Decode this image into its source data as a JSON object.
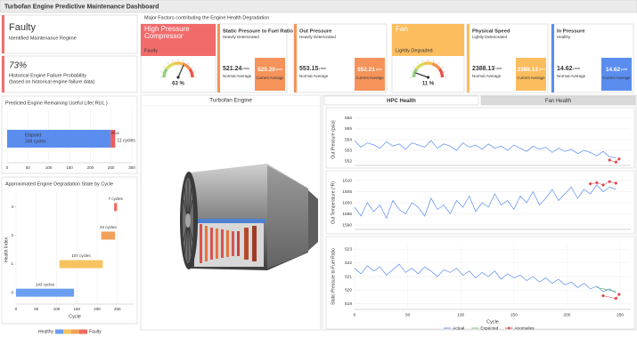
{
  "header": {
    "title": "Turbofan Engine Predictive Maintenance Dashboard"
  },
  "regime": {
    "status": "Faulty",
    "caption": "Identified Maintenance Regime"
  },
  "failure": {
    "probability": "73%",
    "caption": "Historical Engine Failure Probability",
    "note": "(based on historical engine failure data)"
  },
  "factors": {
    "title": "Major Factors contributing the Engine Health Degradation",
    "components": [
      {
        "name": "High Pressure Compressor",
        "state": "Faulty",
        "color": "#f26b6b",
        "gauge": {
          "value": 63,
          "label": "63 %",
          "lim": [
            0,
            100
          ]
        }
      },
      {
        "name": "Fan",
        "state": "Lightly Degraded",
        "color": "#fbbd5e",
        "gauge": {
          "value": 11,
          "label": "11 %",
          "lim": [
            0,
            100
          ]
        }
      }
    ],
    "sensors": [
      {
        "name": "Static Pressure to Fuel Ratio",
        "state": "Heavily Deteriorated",
        "color": "#f5935a",
        "normal": "521.24",
        "current": "520.20",
        "unit": "psia",
        "normal_label": "Normal Average",
        "current_label": "Current Average"
      },
      {
        "name": "Out Pressure",
        "state": "Heavily Deteriorated",
        "color": "#f5935a",
        "normal": "553.15",
        "current": "552.21",
        "unit": "psia",
        "normal_label": "Normal Average",
        "current_label": "Current Average"
      },
      {
        "name": "Physical Speed",
        "state": "Lightly Deteriorated",
        "color": "#fbbd5e",
        "normal": "2388.13",
        "current": "2388.13",
        "unit": "rpm",
        "normal_label": "Normal Average",
        "current_label": "Current Average"
      },
      {
        "name": "In Pressure",
        "state": "Healthy",
        "color": "#5b8def",
        "normal": "14.62",
        "current": "14.62",
        "unit": "psia",
        "normal_label": "Normal Average",
        "current_label": "Current Average"
      }
    ]
  },
  "engine_panel": {
    "title": "Turbofan Engine"
  },
  "tabs": [
    {
      "label": "HPC Health",
      "active": true
    },
    {
      "label": "Fan Health",
      "active": false
    }
  ],
  "chart_data": [
    {
      "type": "bar",
      "orientation": "horizontal",
      "stacked": true,
      "title": "Predicted Engine Remaining Useful Life( RUL )",
      "series": [
        {
          "name": "Elapsed",
          "color": "#5b8def",
          "values": [
            249
          ],
          "value_labels": [
            "249 cycles"
          ]
        },
        {
          "name": "RUL",
          "color": "#ef5b5b",
          "values": [
            11
          ],
          "value_labels": [
            "11 cycles"
          ]
        }
      ],
      "xlim": [
        0,
        300
      ],
      "xticks": [
        0,
        50,
        100,
        150,
        200,
        250,
        300
      ],
      "grid": true
    },
    {
      "type": "range-bar",
      "title": "Approximated Engine Degradation State by Cycle",
      "y": [
        0,
        1,
        2,
        3
      ],
      "base": [
        0,
        107,
        210,
        242
      ],
      "values": [
        143,
        107,
        34,
        7
      ],
      "value_labels": [
        "143 cycles",
        "107 cycles",
        "34 cycles",
        "7 cycles"
      ],
      "colors": [
        "#6a9ef0",
        "#f7c35f",
        "#f3a05a",
        "#ec6a5e"
      ],
      "xlim": [
        0,
        290
      ],
      "xticks": [
        0,
        50,
        100,
        150,
        200,
        250
      ],
      "ylim": [
        -0.4,
        3.4
      ],
      "yticks": [
        0,
        1,
        2,
        3
      ],
      "xlabel": "Cycle",
      "ylabel": "Health Index",
      "grid": true,
      "legend": {
        "low": "Healthy",
        "high": "Faulty"
      }
    },
    {
      "type": "line",
      "ylabel": "Out Pressure (psia)",
      "xlim": [
        0,
        260
      ],
      "ylim": [
        551.6,
        556.4
      ],
      "yticks": [
        552,
        553,
        554,
        555,
        556
      ],
      "grid": true,
      "series": [
        {
          "color": "#5b8def",
          "x": [
            0,
            6,
            12,
            18,
            24,
            30,
            36,
            42,
            48,
            54,
            60,
            66,
            72,
            78,
            84,
            90,
            96,
            102,
            108,
            114,
            120,
            126,
            132,
            138,
            144,
            150,
            156,
            162,
            168,
            174,
            180,
            186,
            192,
            198,
            204,
            210,
            216,
            222,
            228,
            234,
            240,
            246
          ],
          "values": [
            553.9,
            553.3,
            553.7,
            553.5,
            553.2,
            553.8,
            553.4,
            553.6,
            553.1,
            553.7,
            553.5,
            553.3,
            553.9,
            553.2,
            553.6,
            553.4,
            553.0,
            553.7,
            553.3,
            553.5,
            553.1,
            553.6,
            553.2,
            553.4,
            553.0,
            553.5,
            553.2,
            552.9,
            553.4,
            553.1,
            553.3,
            552.8,
            553.2,
            552.9,
            553.1,
            552.7,
            553.0,
            552.8,
            552.5,
            552.9,
            552.4,
            552.3
          ]
        },
        {
          "color": "#e0454f",
          "marker": true,
          "x": [
            240,
            246,
            249
          ],
          "values": [
            552.1,
            551.9,
            552.2
          ]
        }
      ]
    },
    {
      "type": "line",
      "ylabel": "Out Temperature (°R)",
      "xlim": [
        0,
        260
      ],
      "ylim": [
        1588,
        1612
      ],
      "yticks": [
        1590,
        1595,
        1600,
        1605,
        1610
      ],
      "grid": true,
      "series": [
        {
          "color": "#5b8def",
          "x": [
            0,
            6,
            12,
            18,
            24,
            30,
            36,
            42,
            48,
            54,
            60,
            66,
            72,
            78,
            84,
            90,
            96,
            102,
            108,
            114,
            120,
            126,
            132,
            138,
            144,
            150,
            156,
            162,
            168,
            174,
            180,
            186,
            192,
            198,
            204,
            210,
            216,
            222,
            228,
            234,
            240,
            246
          ],
          "values": [
            1598,
            1594,
            1600,
            1596,
            1599,
            1593,
            1601,
            1597,
            1595,
            1600,
            1598,
            1594,
            1602,
            1597,
            1599,
            1595,
            1601,
            1598,
            1603,
            1596,
            1600,
            1598,
            1604,
            1599,
            1601,
            1597,
            1603,
            1600,
            1605,
            1599,
            1602,
            1606,
            1601,
            1604,
            1607,
            1602,
            1606,
            1604,
            1608,
            1605,
            1607,
            1606
          ]
        },
        {
          "color": "#e0454f",
          "marker": true,
          "x": [
            222,
            228,
            234,
            240,
            246
          ],
          "values": [
            1608.5,
            1609,
            1608,
            1609.5,
            1608.8
          ]
        }
      ]
    },
    {
      "type": "line",
      "ylabel": "Static Pressure to Fuel Ratio",
      "xlim": [
        0,
        260
      ],
      "ylim": [
        518.6,
        523.4
      ],
      "yticks": [
        519,
        520,
        521,
        522,
        523
      ],
      "xticks": [
        0,
        50,
        100,
        150,
        200,
        250
      ],
      "xlabel": "Cycle",
      "grid": true,
      "series": [
        {
          "name": "Actual",
          "color": "#5b8def",
          "x": [
            0,
            6,
            12,
            18,
            24,
            30,
            36,
            42,
            48,
            54,
            60,
            66,
            72,
            78,
            84,
            90,
            96,
            102,
            108,
            114,
            120,
            126,
            132,
            138,
            144,
            150,
            156,
            162,
            168,
            174,
            180,
            186,
            192,
            198,
            204,
            210,
            216,
            222,
            228,
            234,
            240,
            246
          ],
          "values": [
            521.6,
            521.2,
            521.8,
            521.4,
            521.7,
            521.1,
            521.5,
            521.9,
            521.3,
            521.6,
            521.2,
            521.7,
            521.4,
            521.0,
            521.5,
            521.3,
            521.6,
            521.1,
            521.4,
            520.9,
            521.3,
            521.0,
            521.4,
            520.8,
            521.2,
            520.9,
            521.1,
            520.7,
            521.0,
            520.6,
            520.9,
            520.5,
            520.8,
            520.4,
            520.6,
            520.2,
            520.5,
            520.1,
            520.3,
            519.9,
            520.1,
            519.8
          ]
        },
        {
          "name": "Expected",
          "color": "#5cc16a",
          "x": [
            228,
            234,
            240,
            246
          ],
          "values": [
            520.2,
            520.1,
            520.0,
            519.9
          ]
        },
        {
          "name": "Anomalies",
          "color": "#e0454f",
          "marker": true,
          "x": [
            234,
            246,
            249
          ],
          "values": [
            519.6,
            519.4,
            519.7
          ]
        }
      ]
    }
  ]
}
